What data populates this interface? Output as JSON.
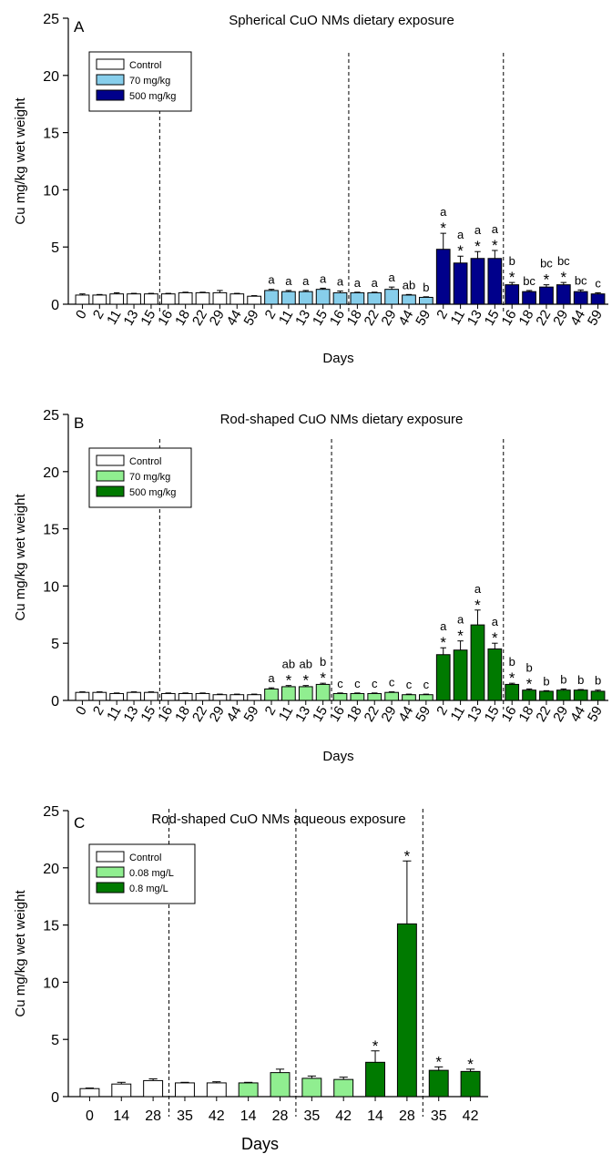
{
  "colors": {
    "control": "#ffffff",
    "sph_low": "#87CEEB",
    "sph_high": "#00008B",
    "rod_low": "#90EE90",
    "rod_high": "#007A00"
  },
  "chart_data": [
    {
      "type": "bar",
      "panel_letter": "A",
      "title": "Spherical CuO NMs dietary exposure",
      "xlabel": "Days",
      "ylabel": "Cu mg/kg wet weight",
      "ylim": [
        0,
        25
      ],
      "yticks": [
        0,
        5,
        10,
        15,
        20,
        25
      ],
      "legend": [
        "Control",
        "70 mg/kg",
        "500 mg/kg"
      ],
      "legend_position": "top-left",
      "categories": [
        "0",
        "2",
        "11",
        "13",
        "15",
        "16",
        "18",
        "22",
        "29",
        "44",
        "59",
        "2",
        "11",
        "13",
        "15",
        "16",
        "18",
        "22",
        "29",
        "44",
        "59",
        "2",
        "11",
        "13",
        "15",
        "16",
        "18",
        "22",
        "29",
        "44",
        "59"
      ],
      "group": [
        "Control",
        "Control",
        "Control",
        "Control",
        "Control",
        "Control",
        "Control",
        "Control",
        "Control",
        "Control",
        "Control",
        "70 mg/kg",
        "70 mg/kg",
        "70 mg/kg",
        "70 mg/kg",
        "70 mg/kg",
        "70 mg/kg",
        "70 mg/kg",
        "70 mg/kg",
        "70 mg/kg",
        "70 mg/kg",
        "500 mg/kg",
        "500 mg/kg",
        "500 mg/kg",
        "500 mg/kg",
        "500 mg/kg",
        "500 mg/kg",
        "500 mg/kg",
        "500 mg/kg",
        "500 mg/kg",
        "500 mg/kg"
      ],
      "values": [
        0.8,
        0.8,
        0.9,
        0.9,
        0.9,
        0.9,
        1.0,
        1.0,
        1.0,
        0.9,
        0.7,
        1.2,
        1.1,
        1.1,
        1.3,
        1.0,
        1.0,
        1.0,
        1.3,
        0.8,
        0.6,
        4.8,
        3.6,
        4.0,
        4.0,
        1.7,
        1.1,
        1.5,
        1.7,
        1.1,
        0.9
      ],
      "errors": [
        0.1,
        0.05,
        0.1,
        0.05,
        0.05,
        0.05,
        0.05,
        0.05,
        0.2,
        0.05,
        0.05,
        0.1,
        0.1,
        0.1,
        0.1,
        0.15,
        0.05,
        0.05,
        0.2,
        0.05,
        0.05,
        1.4,
        0.6,
        0.6,
        0.7,
        0.2,
        0.1,
        0.2,
        0.2,
        0.15,
        0.1
      ],
      "annotations": [
        "",
        "",
        "",
        "",
        "",
        "",
        "",
        "",
        "",
        "",
        "",
        "a",
        "a",
        "a",
        "a",
        "a",
        "a",
        "a",
        "a",
        "ab",
        "b",
        "a\n*",
        "a\n*",
        "a\n*",
        "a\n*",
        "b\n*",
        "bc",
        "bc\n*",
        "bc\n*",
        "bc",
        "c"
      ],
      "separators_after_index": [
        4,
        15,
        24
      ]
    },
    {
      "type": "bar",
      "panel_letter": "B",
      "title": "Rod-shaped CuO NMs dietary exposure",
      "xlabel": "Days",
      "ylabel": "Cu mg/kg wet weight",
      "ylim": [
        0,
        25
      ],
      "yticks": [
        0,
        5,
        10,
        15,
        20,
        25
      ],
      "legend": [
        "Control",
        "70 mg/kg",
        "500 mg/kg"
      ],
      "legend_position": "top-left",
      "categories": [
        "0",
        "2",
        "11",
        "13",
        "15",
        "16",
        "18",
        "22",
        "29",
        "44",
        "59",
        "2",
        "11",
        "13",
        "15",
        "16",
        "18",
        "22",
        "29",
        "44",
        "59",
        "2",
        "11",
        "13",
        "15",
        "16",
        "18",
        "22",
        "29",
        "44",
        "59"
      ],
      "group": [
        "Control",
        "Control",
        "Control",
        "Control",
        "Control",
        "Control",
        "Control",
        "Control",
        "Control",
        "Control",
        "Control",
        "70 mg/kg",
        "70 mg/kg",
        "70 mg/kg",
        "70 mg/kg",
        "70 mg/kg",
        "70 mg/kg",
        "70 mg/kg",
        "70 mg/kg",
        "70 mg/kg",
        "70 mg/kg",
        "500 mg/kg",
        "500 mg/kg",
        "500 mg/kg",
        "500 mg/kg",
        "500 mg/kg",
        "500 mg/kg",
        "500 mg/kg",
        "500 mg/kg",
        "500 mg/kg",
        "500 mg/kg"
      ],
      "values": [
        0.7,
        0.7,
        0.6,
        0.7,
        0.7,
        0.6,
        0.6,
        0.6,
        0.5,
        0.5,
        0.5,
        1.0,
        1.2,
        1.2,
        1.4,
        0.6,
        0.6,
        0.6,
        0.7,
        0.5,
        0.5,
        4.0,
        4.4,
        6.6,
        4.5,
        1.4,
        0.9,
        0.8,
        0.9,
        0.9,
        0.8
      ],
      "errors": [
        0.05,
        0.05,
        0.05,
        0.05,
        0.05,
        0.05,
        0.05,
        0.05,
        0.05,
        0.05,
        0.05,
        0.1,
        0.1,
        0.1,
        0.1,
        0.05,
        0.05,
        0.05,
        0.05,
        0.05,
        0.05,
        0.6,
        0.8,
        1.3,
        0.5,
        0.1,
        0.1,
        0.05,
        0.1,
        0.05,
        0.1
      ],
      "annotations": [
        "",
        "",
        "",
        "",
        "",
        "",
        "",
        "",
        "",
        "",
        "",
        "a",
        "ab\n*",
        "ab\n*",
        "b\n*",
        "c",
        "c",
        "c",
        "c",
        "c",
        "c",
        "a\n*",
        "a\n*",
        "a\n*",
        "a\n*",
        "b\n*",
        "b\n*",
        "b",
        "b",
        "b",
        "b"
      ],
      "separators_after_index": [
        4,
        14,
        24
      ]
    },
    {
      "type": "bar",
      "panel_letter": "C",
      "title": "Rod-shaped CuO NMs aqueous exposure",
      "xlabel": "Days",
      "ylabel": "Cu mg/kg wet weight",
      "ylim": [
        0,
        25
      ],
      "yticks": [
        0,
        5,
        10,
        15,
        20,
        25
      ],
      "legend": [
        "Control",
        "0.08 mg/L",
        "0.8 mg/L"
      ],
      "legend_position": "top-left",
      "categories": [
        "0",
        "14",
        "28",
        "35",
        "42",
        "14",
        "28",
        "35",
        "42",
        "14",
        "28",
        "35",
        "42"
      ],
      "group": [
        "Control",
        "Control",
        "Control",
        "Control",
        "Control",
        "0.08 mg/L",
        "0.08 mg/L",
        "0.08 mg/L",
        "0.08 mg/L",
        "0.8 mg/L",
        "0.8 mg/L",
        "0.8 mg/L",
        "0.8 mg/L"
      ],
      "values": [
        0.7,
        1.1,
        1.4,
        1.2,
        1.2,
        1.2,
        2.1,
        1.6,
        1.5,
        3.0,
        15.1,
        2.3,
        2.2
      ],
      "errors": [
        0.05,
        0.15,
        0.15,
        0.05,
        0.1,
        0.05,
        0.3,
        0.2,
        0.2,
        1.0,
        5.5,
        0.3,
        0.2
      ],
      "annotations": [
        "",
        "",
        "",
        "",
        "",
        "",
        "",
        "",
        "",
        "*",
        "*",
        "*",
        "*"
      ],
      "separators_after_index": [
        2,
        6,
        10
      ]
    }
  ]
}
